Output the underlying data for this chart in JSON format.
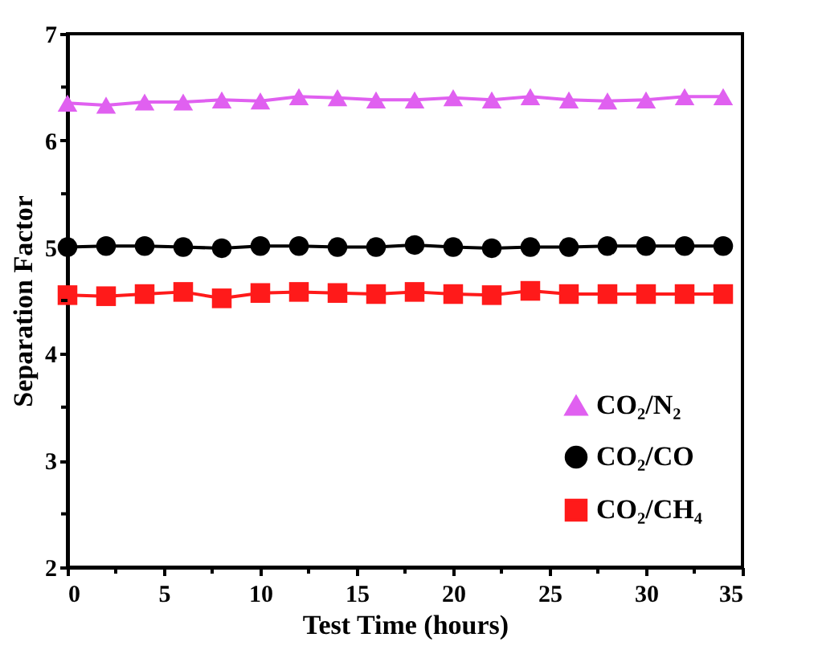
{
  "chart_data": {
    "type": "line",
    "xlabel": "Test Time (hours)",
    "ylabel": "Separation Factor",
    "x": [
      0,
      2,
      4,
      6,
      8,
      10,
      12,
      14,
      16,
      18,
      20,
      22,
      24,
      26,
      28,
      30,
      32,
      34
    ],
    "series": [
      {
        "name": "CO₂/N₂",
        "color": "#e060f0",
        "marker": "triangle",
        "values": [
          6.35,
          6.33,
          6.36,
          6.36,
          6.38,
          6.37,
          6.41,
          6.4,
          6.38,
          6.38,
          6.4,
          6.38,
          6.41,
          6.38,
          6.37,
          6.38,
          6.41,
          6.41
        ]
      },
      {
        "name": "CO₂/CO",
        "color": "#000000",
        "marker": "circle",
        "values": [
          5.0,
          5.01,
          5.01,
          5.0,
          4.99,
          5.01,
          5.01,
          5.0,
          5.0,
          5.02,
          5.0,
          4.99,
          5.0,
          5.0,
          5.01,
          5.01,
          5.01,
          5.01
        ]
      },
      {
        "name": "CO₂/CH₄",
        "color": "#ff1a1a",
        "marker": "square",
        "values": [
          4.55,
          4.54,
          4.56,
          4.58,
          4.52,
          4.57,
          4.58,
          4.57,
          4.56,
          4.58,
          4.56,
          4.55,
          4.59,
          4.56,
          4.56,
          4.56,
          4.56,
          4.56
        ]
      }
    ],
    "xlim": [
      0,
      35
    ],
    "ylim": [
      2,
      7
    ],
    "xticks": [
      0,
      {
        "value": 2.5,
        "label": null
      },
      5,
      {
        "value": 7.5,
        "label": null
      },
      10,
      {
        "value": 12.5,
        "label": null
      },
      15,
      {
        "value": 17.5,
        "label": null
      },
      20,
      {
        "value": 22.5,
        "label": null
      },
      25,
      {
        "value": 27.5,
        "label": null
      },
      30,
      {
        "value": 32.5,
        "label": null
      },
      35
    ],
    "yticks": [
      2,
      {
        "value": 2.5,
        "label": null
      },
      3,
      {
        "value": 3.5,
        "label": null
      },
      4,
      {
        "value": 4.5,
        "label": null
      },
      5,
      {
        "value": 5.5,
        "label": null
      },
      6,
      {
        "value": 6.5,
        "label": null
      },
      7
    ],
    "grid": false,
    "legend": "bottom right",
    "line_style": "solid"
  }
}
